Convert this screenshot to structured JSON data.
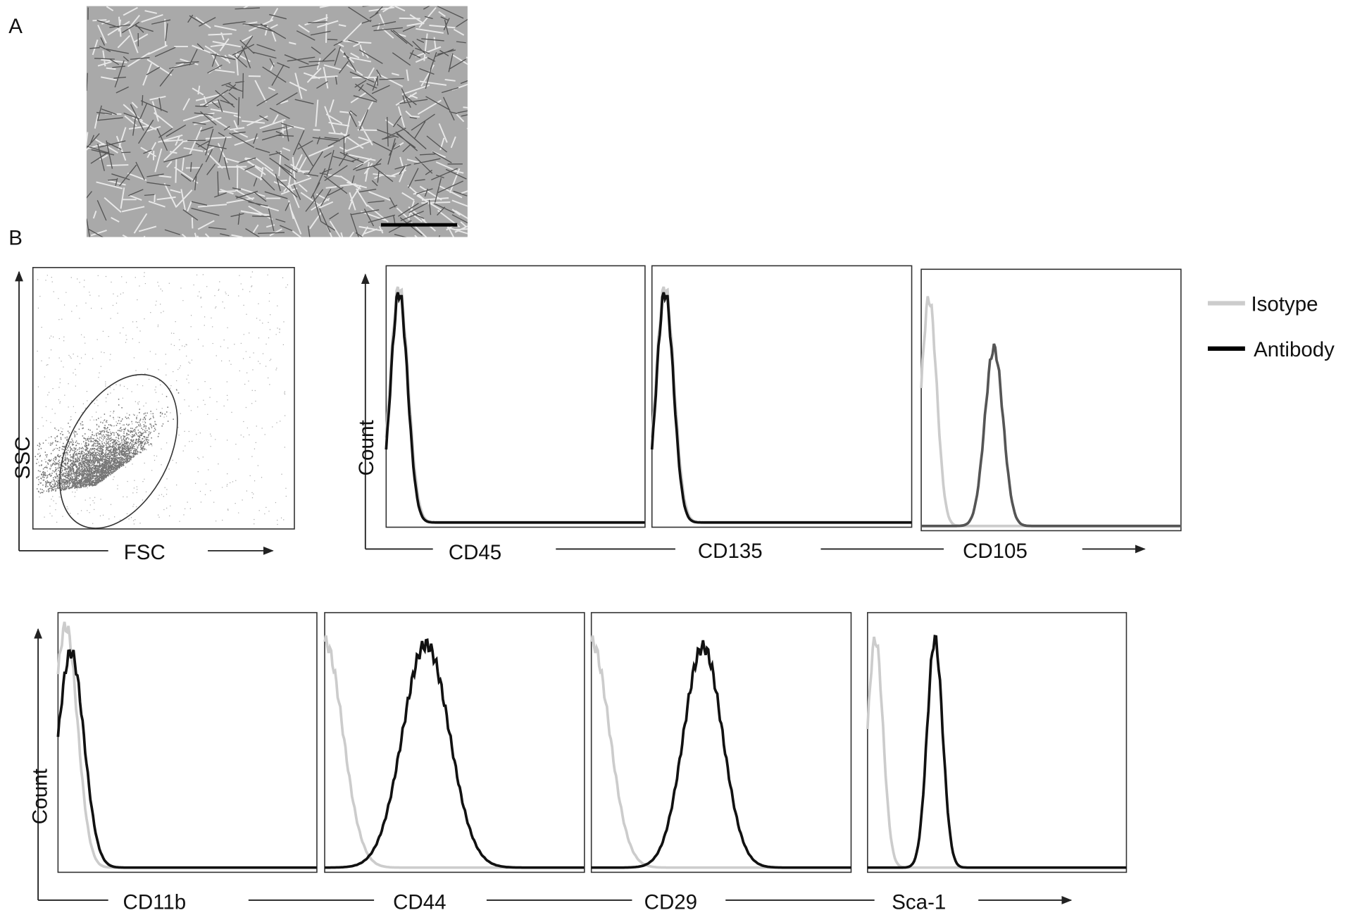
{
  "panel_a": {
    "label": "A"
  },
  "panel_b": {
    "label": "B",
    "scatter": {
      "y_label": "SSC",
      "x_label": "FSC"
    },
    "count_label_top": "Count",
    "count_label_bottom": "Count",
    "top_markers": [
      "CD45",
      "CD135",
      "CD105"
    ],
    "bottom_markers": [
      "CD11b",
      "CD44",
      "CD29",
      "Sca-1"
    ],
    "legend": [
      "Isotype",
      "Antibody"
    ]
  }
}
